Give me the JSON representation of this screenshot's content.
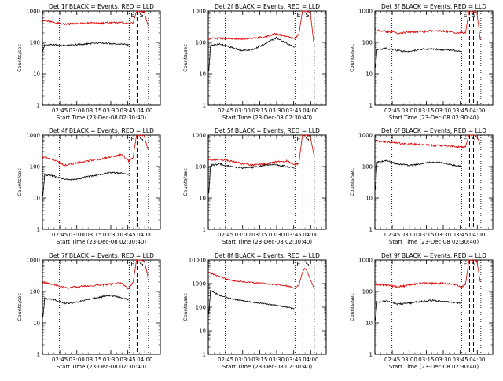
{
  "chart_data": {
    "type": "line",
    "x_tick_labels": [
      "02:45",
      "03:00",
      "03:15",
      "03:30",
      "03:45",
      "04:00"
    ],
    "x_tick_values_min": [
      15.33,
      30.33,
      45.33,
      60.33,
      75.33,
      90.33
    ],
    "xlabel": "Start Time (23-Dec-08 02:30:40)",
    "ylabel": "Counts/sec",
    "yscale": "log",
    "markers": {
      "E_label": "E",
      "S_label": "S",
      "dotted_minutes": [
        15.0,
        76.5,
        93.5
      ],
      "dashed_minutes": [
        83.5,
        87.0
      ]
    },
    "panels": [
      {
        "title": "Det 1f BLACK = Events, RED = LLD",
        "ylim": [
          1,
          1000
        ],
        "y_tick_labels": [
          "1",
          "10",
          "100",
          "1000"
        ],
        "red": {
          "x": [
            0,
            10,
            20,
            30,
            40,
            50,
            60,
            70,
            76,
            80,
            83,
            85,
            87,
            90,
            93
          ],
          "y": [
            500,
            430,
            380,
            400,
            420,
            410,
            420,
            430,
            380,
            420,
            1000,
            1000,
            1000,
            900,
            350
          ]
        },
        "black": {
          "x": [
            0.5,
            2,
            10,
            20,
            30,
            40,
            50,
            60,
            70,
            76
          ],
          "y": [
            55,
            80,
            85,
            78,
            85,
            90,
            95,
            92,
            90,
            82
          ]
        }
      },
      {
        "title": "Det 2f BLACK = Events, RED = LLD",
        "ylim": [
          1,
          1000
        ],
        "y_tick_labels": [
          "1",
          "10",
          "100",
          "1000"
        ],
        "red": {
          "x": [
            0,
            10,
            20,
            30,
            40,
            50,
            60,
            70,
            76,
            80,
            83,
            85,
            87,
            90,
            93
          ],
          "y": [
            130,
            135,
            130,
            130,
            135,
            150,
            190,
            150,
            130,
            180,
            1000,
            1000,
            1000,
            900,
            100
          ]
        },
        "black": {
          "x": [
            0.5,
            2,
            10,
            20,
            30,
            40,
            50,
            60,
            70,
            76
          ],
          "y": [
            12,
            80,
            90,
            70,
            55,
            60,
            90,
            140,
            90,
            70
          ]
        }
      },
      {
        "title": "Det 3f BLACK = Events, RED = LLD",
        "ylim": [
          1,
          1000
        ],
        "y_tick_labels": [
          "1",
          "10",
          "100",
          "1000"
        ],
        "red": {
          "x": [
            0,
            10,
            20,
            30,
            40,
            50,
            60,
            70,
            76,
            80,
            83,
            85,
            87,
            90,
            93
          ],
          "y": [
            250,
            220,
            200,
            210,
            220,
            230,
            230,
            210,
            200,
            200,
            1000,
            1000,
            1000,
            900,
            120
          ]
        },
        "black": {
          "x": [
            0.5,
            2,
            10,
            20,
            30,
            40,
            50,
            60,
            70,
            76
          ],
          "y": [
            16,
            60,
            65,
            55,
            50,
            60,
            62,
            58,
            55,
            50
          ]
        }
      },
      {
        "title": "Det 4f BLACK = Events, RED = LLD",
        "ylim": [
          1,
          1000
        ],
        "y_tick_labels": [
          "1",
          "10",
          "100",
          "1000"
        ],
        "red": {
          "x": [
            0,
            10,
            20,
            30,
            40,
            50,
            60,
            70,
            76,
            80,
            83,
            85,
            87,
            90,
            93
          ],
          "y": [
            200,
            160,
            110,
            130,
            150,
            170,
            200,
            240,
            150,
            200,
            1000,
            1000,
            1000,
            900,
            350
          ]
        },
        "black": {
          "x": [
            0.5,
            2,
            10,
            20,
            30,
            40,
            50,
            60,
            70,
            76
          ],
          "y": [
            12,
            55,
            50,
            38,
            40,
            48,
            55,
            65,
            62,
            55
          ]
        }
      },
      {
        "title": "Det 5f BLACK = Events, RED = LLD",
        "ylim": [
          1,
          1000
        ],
        "y_tick_labels": [
          "1",
          "10",
          "100",
          "1000"
        ],
        "red": {
          "x": [
            0,
            10,
            20,
            30,
            40,
            50,
            60,
            70,
            76,
            80,
            83,
            85,
            87,
            90,
            93
          ],
          "y": [
            160,
            170,
            150,
            125,
            110,
            120,
            140,
            150,
            110,
            130,
            1000,
            1000,
            1000,
            900,
            250
          ]
        },
        "black": {
          "x": [
            0.5,
            2,
            10,
            20,
            30,
            40,
            50,
            60,
            70,
            76
          ],
          "y": [
            14,
            110,
            120,
            100,
            90,
            95,
            110,
            115,
            100,
            90
          ]
        }
      },
      {
        "title": "Det 6f BLACK = Events, RED = LLD",
        "ylim": [
          1,
          1000
        ],
        "y_tick_labels": [
          "1",
          "10",
          "100",
          "1000"
        ],
        "red": {
          "x": [
            0,
            10,
            20,
            30,
            40,
            50,
            60,
            70,
            76,
            80,
            83,
            85,
            87,
            90,
            93
          ],
          "y": [
            650,
            600,
            560,
            520,
            500,
            470,
            470,
            440,
            410,
            430,
            1000,
            1000,
            1000,
            900,
            500
          ]
        },
        "black": {
          "x": [
            0.5,
            2,
            10,
            20,
            30,
            40,
            50,
            60,
            70,
            76
          ],
          "y": [
            18,
            140,
            155,
            120,
            110,
            120,
            140,
            130,
            110,
            100
          ]
        }
      },
      {
        "title": "Det 7f BLACK = Events, RED = LLD",
        "ylim": [
          1,
          1000
        ],
        "y_tick_labels": [
          "1",
          "10",
          "100",
          "1000"
        ],
        "red": {
          "x": [
            0,
            10,
            20,
            30,
            40,
            50,
            60,
            70,
            76,
            80,
            83,
            85,
            87,
            90,
            93
          ],
          "y": [
            200,
            170,
            130,
            140,
            150,
            160,
            170,
            190,
            120,
            200,
            1000,
            1000,
            1000,
            900,
            300
          ]
        },
        "black": {
          "x": [
            0.5,
            2,
            10,
            20,
            30,
            40,
            50,
            60,
            70,
            76
          ],
          "y": [
            15,
            60,
            55,
            42,
            45,
            55,
            65,
            75,
            62,
            55
          ]
        }
      },
      {
        "title": "Det 8f BLACK = Events, RED = LLD",
        "ylim": [
          1,
          10000
        ],
        "y_tick_labels": [
          "1",
          "10",
          "100",
          "1000",
          "10000"
        ],
        "red": {
          "x": [
            0,
            10,
            20,
            30,
            40,
            50,
            60,
            70,
            76,
            80,
            83,
            85,
            87,
            90,
            93
          ],
          "y": [
            3000,
            2000,
            1400,
            1200,
            1100,
            1000,
            900,
            800,
            650,
            900,
            3000,
            4500,
            3500,
            1500,
            700
          ]
        },
        "black": {
          "x": [
            0.5,
            2,
            10,
            20,
            30,
            40,
            50,
            60,
            70,
            76
          ],
          "y": [
            50,
            500,
            320,
            230,
            190,
            160,
            140,
            120,
            100,
            85
          ]
        }
      },
      {
        "title": "Det 9f BLACK = Events, RED = LLD",
        "ylim": [
          1,
          1000
        ],
        "y_tick_labels": [
          "1",
          "10",
          "100",
          "1000"
        ],
        "red": {
          "x": [
            0,
            10,
            20,
            30,
            40,
            50,
            60,
            70,
            76,
            80,
            83,
            85,
            87,
            90,
            93
          ],
          "y": [
            170,
            160,
            140,
            160,
            180,
            180,
            180,
            170,
            140,
            170,
            1000,
            1000,
            1000,
            900,
            200
          ]
        },
        "black": {
          "x": [
            0.5,
            2,
            10,
            20,
            30,
            40,
            50,
            60,
            70,
            76
          ],
          "y": [
            12,
            45,
            50,
            40,
            42,
            48,
            52,
            48,
            45,
            42
          ]
        }
      }
    ]
  }
}
